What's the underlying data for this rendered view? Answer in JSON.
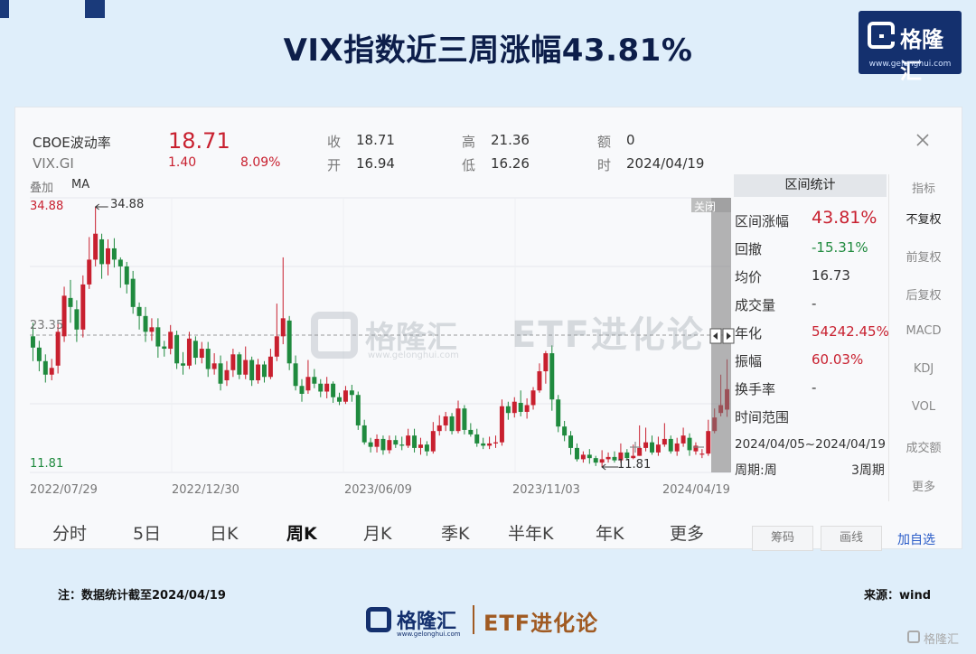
{
  "page_title": "VIX指数近三周涨幅43.81%",
  "logo": {
    "name": "格隆汇",
    "url": "www.gelonghui.com"
  },
  "header": {
    "index_name": "CBOE波动率",
    "code": "VIX.GI",
    "price": "18.71",
    "change": "1.40",
    "change_pct": "8.09%",
    "close_label": "收",
    "close": "18.71",
    "open_label": "开",
    "open": "16.94",
    "high_label": "高",
    "high": "21.36",
    "low_label": "低",
    "low": "16.26",
    "amount_label": "额",
    "amount": "0",
    "time_label": "时",
    "time": "2024/04/19",
    "overlay_label": "叠加",
    "ma_label": "MA",
    "close_icon": "close-icon"
  },
  "stats": {
    "title": "区间统计",
    "close_tag": "关闭",
    "rows": [
      {
        "label": "区间涨幅",
        "value": "43.81%"
      },
      {
        "label": "回撤",
        "value": "-15.31%"
      },
      {
        "label": "均价",
        "value": "16.73"
      },
      {
        "label": "成交量",
        "value": "-"
      },
      {
        "label": "年化",
        "value": "54242.45%"
      },
      {
        "label": "振幅",
        "value": "60.03%"
      },
      {
        "label": "换手率",
        "value": "-"
      },
      {
        "label": "时间范围",
        "value": ""
      }
    ],
    "range": "2024/04/05~2024/04/19",
    "period_label": "周期:周",
    "period_value": "3周期"
  },
  "side_menu": [
    "指标",
    "不复权",
    "前复权",
    "后复权",
    "MACD",
    "KDJ",
    "VOL",
    "成交额",
    "更多"
  ],
  "tabs": [
    "分时",
    "5日",
    "日K",
    "周K",
    "月K",
    "季K",
    "半年K",
    "年K",
    "更多"
  ],
  "active_tab": "周K",
  "bottom_buttons": [
    "筹码",
    "画线",
    "加自选"
  ],
  "note": "注：数据统计截至2024/04/19",
  "source": "来源：wind",
  "footer": {
    "brand": "格隆汇",
    "etf": "ETF进化论",
    "url": "www.gelonghui.com"
  },
  "watermark": {
    "brand": "格隆汇",
    "etf": "ETF进化论",
    "url": "www.gelonghui.com"
  },
  "corner_mark": "格隆汇",
  "colors": {
    "up": "#c8202f",
    "down": "#1f8a3e",
    "brand": "#14306e",
    "etf": "#a05a22"
  },
  "chart_data": {
    "type": "candlestick",
    "period": "weekly",
    "x_ticks": [
      "2022/07/29",
      "2022/12/30",
      "2023/06/09",
      "2023/11/03",
      "2024/04/19"
    ],
    "y_labels": {
      "max": "34.88",
      "mid": "23.35",
      "min": "11.81"
    },
    "ylim": [
      11.81,
      34.88
    ],
    "max_marker": "34.88",
    "min_marker": "11.81",
    "candles": [
      [
        23.4,
        22.4,
        24.6,
        21.2
      ],
      [
        22.4,
        21.2,
        23.0,
        20.3
      ],
      [
        21.2,
        20.0,
        21.8,
        19.3
      ],
      [
        20.0,
        20.6,
        21.4,
        19.5
      ],
      [
        20.8,
        23.8,
        24.5,
        20.1
      ],
      [
        23.4,
        27.0,
        27.8,
        22.9
      ],
      [
        26.8,
        26.0,
        28.4,
        24.6
      ],
      [
        25.8,
        24.0,
        26.6,
        22.9
      ],
      [
        24.0,
        28.0,
        28.8,
        23.3
      ],
      [
        28.0,
        30.2,
        32.2,
        27.6
      ],
      [
        30.2,
        32.5,
        34.88,
        29.6
      ],
      [
        32.0,
        29.8,
        32.5,
        28.5
      ],
      [
        29.8,
        31.2,
        32.0,
        28.8
      ],
      [
        31.2,
        30.2,
        32.1,
        29.5
      ],
      [
        30.2,
        29.6,
        30.4,
        27.7
      ],
      [
        29.6,
        28.0,
        30.0,
        27.2
      ],
      [
        28.5,
        26.0,
        29.2,
        25.4
      ],
      [
        26.0,
        25.2,
        26.4,
        24.0
      ],
      [
        25.2,
        23.8,
        26.0,
        22.9
      ],
      [
        23.8,
        24.2,
        25.0,
        23.0
      ],
      [
        24.2,
        22.5,
        25.0,
        21.5
      ],
      [
        22.5,
        22.3,
        23.0,
        21.6
      ],
      [
        22.3,
        23.8,
        24.4,
        21.8
      ],
      [
        23.5,
        21.0,
        23.9,
        20.5
      ],
      [
        21.0,
        20.8,
        22.0,
        20.0
      ],
      [
        20.8,
        23.2,
        23.8,
        20.5
      ],
      [
        23.0,
        21.5,
        23.4,
        20.9
      ],
      [
        21.5,
        22.3,
        22.9,
        21.0
      ],
      [
        22.3,
        20.5,
        22.9,
        19.8
      ],
      [
        20.5,
        21.0,
        21.9,
        20.0
      ],
      [
        21.0,
        19.2,
        21.7,
        18.6
      ],
      [
        19.5,
        20.4,
        21.2,
        19.0
      ],
      [
        20.4,
        21.8,
        22.3,
        19.8
      ],
      [
        21.8,
        20.0,
        22.0,
        19.6
      ],
      [
        20.0,
        21.3,
        22.5,
        19.6
      ],
      [
        21.3,
        19.5,
        21.6,
        19.0
      ],
      [
        19.5,
        20.9,
        21.4,
        19.2
      ],
      [
        20.9,
        19.8,
        21.2,
        19.3
      ],
      [
        19.8,
        21.6,
        22.3,
        19.6
      ],
      [
        21.6,
        23.4,
        26.3,
        21.2
      ],
      [
        23.4,
        25.0,
        30.4,
        22.7
      ],
      [
        24.8,
        21.0,
        25.2,
        20.4
      ],
      [
        21.0,
        19.0,
        21.7,
        18.6
      ],
      [
        19.0,
        18.3,
        19.6,
        17.6
      ],
      [
        18.6,
        19.8,
        21.3,
        18.3
      ],
      [
        19.8,
        19.2,
        20.5,
        18.8
      ],
      [
        19.2,
        18.5,
        19.6,
        18.0
      ],
      [
        18.5,
        19.2,
        19.8,
        17.9
      ],
      [
        19.2,
        18.0,
        19.4,
        17.5
      ],
      [
        18.0,
        17.6,
        18.4,
        17.3
      ],
      [
        17.6,
        18.6,
        19.0,
        17.4
      ],
      [
        18.6,
        18.2,
        19.1,
        17.6
      ],
      [
        18.2,
        15.5,
        18.5,
        15.1
      ],
      [
        15.5,
        14.0,
        16.0,
        13.8
      ],
      [
        14.0,
        13.6,
        14.4,
        13.1
      ],
      [
        13.6,
        14.3,
        14.7,
        13.1
      ],
      [
        14.3,
        13.3,
        14.6,
        12.9
      ],
      [
        13.3,
        14.2,
        14.6,
        13.0
      ],
      [
        14.2,
        13.8,
        14.6,
        13.5
      ],
      [
        13.8,
        13.7,
        14.5,
        13.3
      ],
      [
        13.7,
        14.6,
        15.2,
        13.5
      ],
      [
        14.6,
        13.5,
        15.2,
        13.1
      ],
      [
        13.5,
        13.8,
        14.4,
        12.9
      ],
      [
        13.8,
        13.2,
        14.1,
        12.8
      ],
      [
        13.2,
        15.0,
        15.8,
        13.0
      ],
      [
        15.0,
        15.5,
        16.4,
        14.6
      ],
      [
        15.5,
        16.3,
        16.7,
        15.0
      ],
      [
        16.3,
        15.0,
        16.6,
        14.7
      ],
      [
        15.0,
        17.0,
        17.7,
        14.8
      ],
      [
        17.0,
        15.1,
        17.3,
        14.7
      ],
      [
        15.1,
        14.7,
        15.7,
        14.5
      ],
      [
        14.7,
        13.9,
        15.2,
        13.6
      ],
      [
        13.9,
        13.7,
        14.4,
        13.4
      ],
      [
        13.7,
        13.9,
        14.5,
        13.4
      ],
      [
        13.9,
        14.0,
        14.6,
        13.5
      ],
      [
        14.0,
        17.2,
        17.8,
        13.7
      ],
      [
        17.2,
        16.6,
        17.6,
        16.0
      ],
      [
        16.6,
        17.6,
        18.0,
        16.2
      ],
      [
        17.5,
        16.7,
        18.6,
        16.3
      ],
      [
        16.7,
        17.3,
        17.9,
        16.1
      ],
      [
        17.3,
        18.6,
        18.9,
        16.9
      ],
      [
        18.6,
        20.3,
        21.0,
        18.4
      ],
      [
        20.3,
        21.9,
        22.1,
        19.2
      ],
      [
        21.9,
        17.8,
        22.6,
        16.8
      ],
      [
        17.8,
        15.4,
        18.2,
        14.9
      ],
      [
        15.4,
        14.6,
        15.9,
        14.1
      ],
      [
        14.6,
        13.5,
        15.0,
        12.9
      ],
      [
        13.5,
        12.5,
        13.9,
        12.3
      ],
      [
        12.5,
        12.9,
        13.2,
        12.2
      ],
      [
        12.9,
        12.6,
        13.4,
        12.1
      ],
      [
        12.6,
        12.2,
        12.8,
        11.9
      ],
      [
        12.2,
        12.5,
        13.3,
        11.81
      ],
      [
        12.5,
        12.7,
        13.1,
        12.2
      ],
      [
        12.7,
        12.4,
        13.2,
        12.2
      ],
      [
        12.4,
        13.1,
        13.9,
        12.2
      ],
      [
        13.1,
        12.6,
        13.4,
        12.4
      ],
      [
        12.6,
        12.8,
        13.8,
        12.5
      ],
      [
        12.8,
        13.5,
        15.5,
        12.8
      ],
      [
        13.5,
        14.0,
        15.3,
        13.2
      ],
      [
        14.0,
        13.1,
        14.6,
        12.9
      ],
      [
        13.1,
        13.8,
        14.5,
        12.8
      ],
      [
        13.8,
        14.3,
        15.7,
        13.6
      ],
      [
        14.3,
        13.2,
        14.6,
        13.0
      ],
      [
        13.2,
        13.9,
        14.4,
        12.8
      ],
      [
        13.9,
        14.6,
        15.3,
        13.6
      ],
      [
        14.4,
        13.3,
        14.8,
        12.8
      ],
      [
        13.2,
        13.7,
        14.0,
        12.9
      ],
      [
        13.0,
        13.0,
        13.4,
        12.6
      ],
      [
        13.0,
        15.0,
        16.0,
        12.8
      ],
      [
        15.0,
        16.2,
        17.0,
        14.8
      ],
      [
        16.6,
        17.3,
        20.0,
        16.3
      ],
      [
        16.9,
        18.71,
        21.36,
        16.26
      ]
    ]
  }
}
